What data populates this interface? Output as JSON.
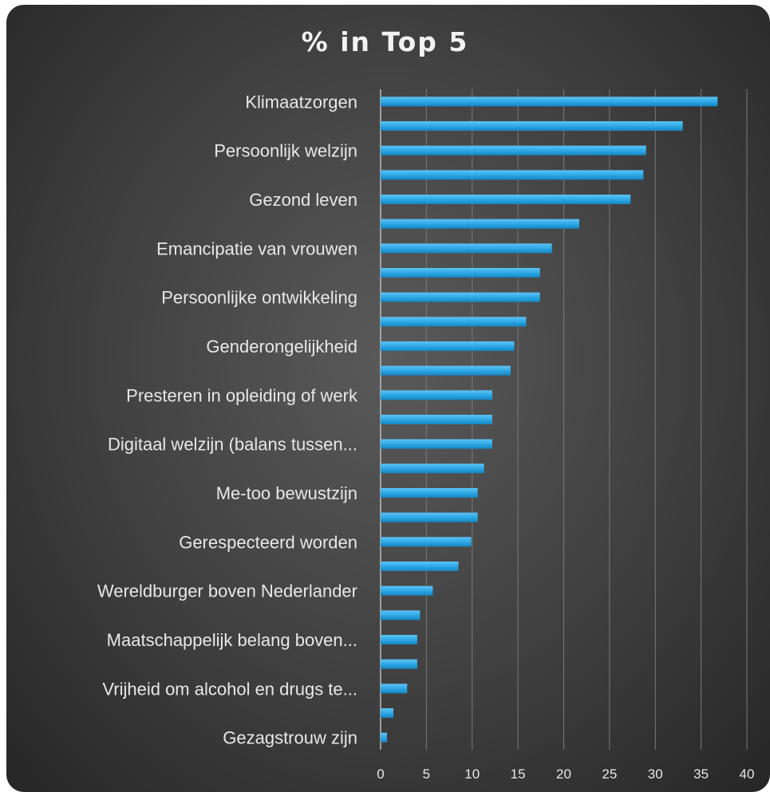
{
  "chart_data": {
    "type": "bar",
    "orientation": "horizontal",
    "title": "% in Top 5",
    "xlabel": "",
    "ylabel": "",
    "xlim": [
      0,
      40
    ],
    "x_ticks": [
      0,
      5,
      10,
      15,
      20,
      25,
      30,
      35,
      40
    ],
    "grid": "vertical",
    "bar_color": "#2aa6e4",
    "categories": [
      "Klimaatzorgen",
      "",
      "Persoonlijk welzijn",
      "",
      "Gezond leven",
      "",
      "Emancipatie van vrouwen",
      "",
      "Persoonlijke ontwikkeling",
      "",
      "Genderongelijkheid",
      "",
      "Presteren in opleiding of werk",
      "",
      "Digitaal welzijn (balans tussen...",
      "",
      "Me-too bewustzijn",
      "",
      "Gerespecteerd worden",
      "",
      "Wereldburger boven Nederlander",
      "",
      "Maatschappelijk belang boven...",
      "",
      "Vrijheid om alcohol en drugs te...",
      "",
      "Gezagstrouw zijn"
    ],
    "values": [
      36.8,
      33.0,
      29.0,
      28.7,
      27.3,
      21.7,
      18.7,
      17.4,
      17.4,
      15.9,
      14.6,
      14.2,
      12.2,
      12.2,
      12.2,
      11.3,
      10.6,
      10.6,
      9.9,
      8.5,
      5.7,
      4.3,
      4.0,
      4.0,
      2.9,
      1.4,
      0.7
    ]
  }
}
